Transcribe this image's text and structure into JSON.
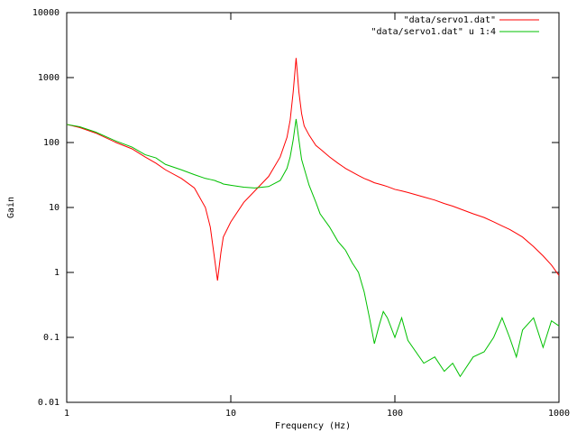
{
  "chart_data": {
    "type": "line",
    "x_label": "Frequency (Hz)",
    "y_label": "Gain",
    "x": [
      1,
      1.2,
      1.5,
      2,
      2.5,
      3,
      3.5,
      4,
      5,
      6,
      7,
      7.5,
      8,
      8.3,
      8.7,
      9,
      10,
      12,
      14,
      17,
      20,
      22,
      23,
      24,
      25,
      26,
      27,
      28,
      30,
      33,
      35,
      40,
      45,
      50,
      55,
      60,
      65,
      70,
      75,
      80,
      85,
      90,
      100,
      110,
      120,
      150,
      175,
      200,
      225,
      250,
      300,
      350,
      400,
      450,
      500,
      550,
      600,
      700,
      800,
      900,
      1000
    ],
    "series": [
      {
        "name": "\"data/servo1.dat\"",
        "color": "#ff0000",
        "values": [
          190,
          170,
          140,
          100,
          80,
          60,
          48,
          38,
          28,
          20,
          10,
          5,
          1.5,
          0.75,
          2,
          3.5,
          6,
          12,
          18,
          30,
          60,
          120,
          220,
          600,
          2000,
          600,
          280,
          180,
          130,
          90,
          80,
          60,
          48,
          40,
          35,
          31,
          28,
          26,
          24,
          23,
          22,
          21,
          19,
          18,
          17,
          14.5,
          13,
          11.5,
          10.5,
          9.5,
          8,
          7,
          6,
          5.2,
          4.6,
          4,
          3.5,
          2.5,
          1.8,
          1.3,
          0.9
        ]
      },
      {
        "name": "\"data/servo1.dat\" u 1:4",
        "color": "#00c000",
        "values": [
          190,
          175,
          145,
          105,
          85,
          65,
          58,
          46,
          38,
          32,
          28,
          27,
          26,
          25,
          24,
          23,
          22,
          20.5,
          20,
          21,
          26,
          40,
          60,
          110,
          230,
          110,
          55,
          40,
          22,
          12,
          8,
          5,
          3,
          2.2,
          1.4,
          1,
          0.5,
          0.2,
          0.08,
          0.15,
          0.25,
          0.2,
          0.1,
          0.2,
          0.09,
          0.04,
          0.05,
          0.03,
          0.04,
          0.025,
          0.05,
          0.06,
          0.1,
          0.2,
          0.1,
          0.05,
          0.13,
          0.2,
          0.07,
          0.18,
          0.15
        ]
      }
    ],
    "xlim": [
      1,
      1000
    ],
    "ylim": [
      0.01,
      10000
    ],
    "xticks": [
      1,
      10,
      100,
      1000
    ],
    "yticks": [
      0.01,
      0.1,
      1,
      10,
      100,
      1000,
      10000
    ],
    "xlog": true,
    "ylog": true,
    "grid": false,
    "legend": "top-right"
  }
}
